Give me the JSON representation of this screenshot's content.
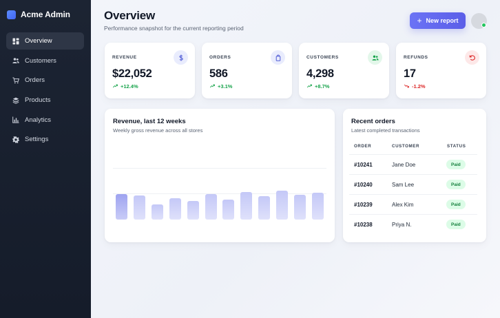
{
  "app": {
    "name": "Acme Admin"
  },
  "sidebar": {
    "items": [
      {
        "label": "Overview",
        "icon": "grid-icon",
        "active": true
      },
      {
        "label": "Customers",
        "icon": "users-icon",
        "active": false
      },
      {
        "label": "Orders",
        "icon": "cart-icon",
        "active": false
      },
      {
        "label": "Products",
        "icon": "box-icon",
        "active": false
      },
      {
        "label": "Analytics",
        "icon": "bar-chart-icon",
        "active": false
      },
      {
        "label": "Settings",
        "icon": "gear-icon",
        "active": false
      }
    ]
  },
  "header": {
    "title": "Overview",
    "subtitle": "Performance snapshot for the current reporting period",
    "new_report_label": "New report"
  },
  "stats": [
    {
      "label": "REVENUE",
      "value": "$22,052",
      "delta": "+12.4%",
      "trend": "up",
      "icon": "dollar-icon",
      "icon_bg": "#e9ecfd",
      "icon_color": "#4f5bd5"
    },
    {
      "label": "ORDERS",
      "value": "586",
      "delta": "+3.1%",
      "trend": "up",
      "icon": "bag-icon",
      "icon_bg": "#e9ecfd",
      "icon_color": "#4f5bd5"
    },
    {
      "label": "CUSTOMERS",
      "value": "4,298",
      "delta": "+8.7%",
      "trend": "up",
      "icon": "users-icon",
      "icon_bg": "#e3f7ea",
      "icon_color": "#16a34a"
    },
    {
      "label": "REFUNDS",
      "value": "17",
      "delta": "-1.2%",
      "trend": "down",
      "icon": "refresh-icon",
      "icon_bg": "#fde8e8",
      "icon_color": "#dc2626"
    }
  ],
  "revenue_chart": {
    "title": "Revenue, last 12 weeks",
    "subtitle": "Weekly gross revenue across all stores"
  },
  "chart_data": {
    "type": "bar",
    "title": "Revenue, last 12 weeks",
    "subtitle": "Weekly gross revenue across all stores",
    "categories": [
      "",
      "",
      "",
      "",
      "",
      "",
      "",
      "",
      "",
      "",
      "",
      ""
    ],
    "values": [
      0.46,
      0.44,
      0.27,
      0.39,
      0.34,
      0.46,
      0.36,
      0.5,
      0.42,
      0.53,
      0.45,
      0.49
    ],
    "ylim": [
      0,
      1
    ],
    "grid": true,
    "colors": {
      "bar": "#c4c8f7",
      "highlight": "#9ea3f0"
    }
  },
  "recent_orders": {
    "title": "Recent orders",
    "subtitle": "Latest completed transactions",
    "columns": [
      "ORDER",
      "CUSTOMER",
      "STATUS"
    ],
    "rows": [
      {
        "order": "#10241",
        "customer": "Jane Doe",
        "status": "Paid"
      },
      {
        "order": "#10240",
        "customer": "Sam Lee",
        "status": "Paid"
      },
      {
        "order": "#10239",
        "customer": "Alex Kim",
        "status": "Paid"
      },
      {
        "order": "#10238",
        "customer": "Priya N.",
        "status": "Paid"
      }
    ]
  },
  "colors": {
    "accent": "#5b5ee8",
    "success": "#16a34a",
    "danger": "#dc2626",
    "sidebar": "#1c2433"
  }
}
